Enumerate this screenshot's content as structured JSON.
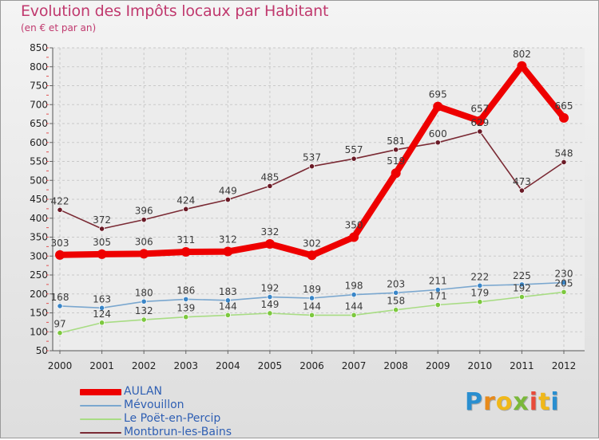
{
  "title": "Evolution des Impôts locaux par Habitant",
  "subtitle": "(en € et par an)",
  "logo": {
    "letters": [
      "P",
      "r",
      "o",
      "x",
      "i",
      "t",
      "i"
    ],
    "colors": [
      "#2a8fd0",
      "#e88a1a",
      "#f0b81a",
      "#7ab83a",
      "#e84a3a",
      "#f0b81a",
      "#2a8fd0"
    ]
  },
  "chart_data": {
    "type": "line",
    "title": "Evolution des Impôts locaux par Habitant",
    "subtitle": "(en € et par an)",
    "xlabel": "",
    "ylabel": "",
    "x": [
      "2000",
      "2001",
      "2002",
      "2003",
      "2004",
      "2005",
      "2006",
      "2007",
      "2008",
      "2009",
      "2010",
      "2011",
      "2012"
    ],
    "ylim": [
      50,
      850
    ],
    "yticks": [
      50,
      100,
      150,
      200,
      250,
      300,
      350,
      400,
      450,
      500,
      550,
      600,
      650,
      700,
      750,
      800,
      850
    ],
    "grid": true,
    "legend_position": "bottom-left",
    "series": [
      {
        "name": "AULAN",
        "color": "#ee0000",
        "marker_color": "#ee0000",
        "emphasis": "bold",
        "values": [
          303,
          305,
          306,
          311,
          312,
          332,
          302,
          350,
          519,
          695,
          657,
          802,
          665
        ],
        "labels": [
          "303",
          "305",
          "306",
          "311",
          "312",
          "332",
          "302",
          "350",
          "519",
          "695",
          "657",
          "802",
          "665"
        ]
      },
      {
        "name": "Mévouillon",
        "color": "#7aa7cf",
        "marker_color": "#3a86c8",
        "emphasis": "normal",
        "values": [
          168,
          163,
          180,
          186,
          183,
          192,
          189,
          198,
          203,
          211,
          222,
          225,
          230
        ],
        "labels": [
          "168",
          "163",
          "180",
          "186",
          "183",
          "192",
          "189",
          "198",
          "203",
          "211",
          "222",
          "225",
          "230"
        ]
      },
      {
        "name": "Le Poët-en-Percip",
        "color": "#a8dc84",
        "marker_color": "#7cc83e",
        "emphasis": "normal",
        "values": [
          97,
          124,
          132,
          139,
          144,
          149,
          144,
          144,
          158,
          171,
          179,
          192,
          205
        ],
        "labels": [
          "97",
          "124",
          "132",
          "139",
          "144",
          "149",
          "144",
          "144",
          "158",
          "171",
          "179",
          "192",
          "205"
        ]
      },
      {
        "name": "Montbrun-les-Bains",
        "color": "#7a2a34",
        "marker_color": "#6a1a26",
        "emphasis": "normal",
        "values": [
          422,
          372,
          396,
          424,
          449,
          485,
          537,
          557,
          581,
          600,
          629,
          473,
          548
        ],
        "labels": [
          "422",
          "372",
          "396",
          "424",
          "449",
          "485",
          "537",
          "557",
          "581",
          "600",
          "629",
          "473",
          "548"
        ]
      }
    ]
  }
}
